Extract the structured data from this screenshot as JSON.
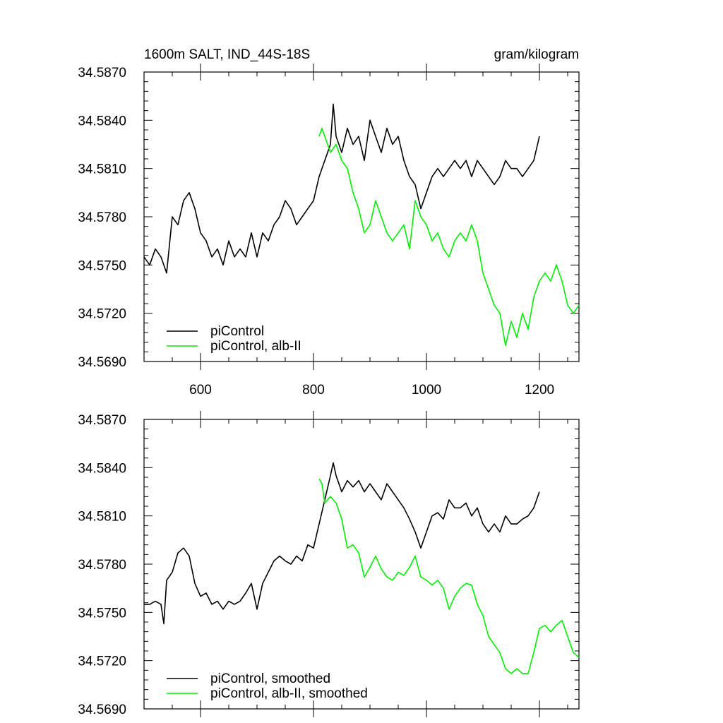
{
  "chart_data": [
    {
      "type": "line",
      "title": "1600m SALT, IND_44S-18S",
      "units": "gram/kilogram",
      "xlabel": "",
      "ylabel": "",
      "xlim": [
        500,
        1270
      ],
      "ylim": [
        34.569,
        34.587
      ],
      "x_ticks": [
        600,
        800,
        1000,
        1200
      ],
      "x_tick_labels": [
        "600",
        "800",
        "1000",
        "1200"
      ],
      "y_ticks": [
        34.569,
        34.572,
        34.575,
        34.578,
        34.581,
        34.584,
        34.587
      ],
      "y_tick_labels": [
        "34.5690",
        "34.5720",
        "34.5750",
        "34.5780",
        "34.5810",
        "34.5840",
        "34.5870"
      ],
      "grid": false,
      "legend": "bottom-left",
      "series": [
        {
          "name": "piControl",
          "color": "#000000",
          "x": [
            500,
            510,
            520,
            530,
            540,
            550,
            560,
            570,
            580,
            590,
            600,
            610,
            620,
            630,
            640,
            650,
            660,
            670,
            680,
            690,
            700,
            710,
            720,
            730,
            740,
            750,
            760,
            770,
            780,
            790,
            800,
            810,
            820,
            830,
            835,
            840,
            850,
            860,
            870,
            880,
            890,
            900,
            910,
            920,
            930,
            940,
            950,
            960,
            970,
            980,
            990,
            995,
            1000,
            1010,
            1020,
            1030,
            1040,
            1050,
            1060,
            1070,
            1080,
            1090,
            1100,
            1110,
            1120,
            1130,
            1140,
            1150,
            1160,
            1170,
            1180,
            1190,
            1200
          ],
          "values": [
            34.5755,
            34.575,
            34.576,
            34.5755,
            34.5745,
            34.578,
            34.5775,
            34.579,
            34.5795,
            34.5785,
            34.577,
            34.5765,
            34.5755,
            34.576,
            34.575,
            34.5765,
            34.5755,
            34.576,
            34.5755,
            34.577,
            34.5755,
            34.577,
            34.5765,
            34.5775,
            34.578,
            34.579,
            34.5785,
            34.5775,
            34.578,
            34.5785,
            34.579,
            34.5805,
            34.5815,
            34.5825,
            34.585,
            34.583,
            34.582,
            34.5835,
            34.5825,
            34.583,
            34.5815,
            34.584,
            34.583,
            34.582,
            34.5835,
            34.5825,
            34.583,
            34.5815,
            34.5805,
            34.58,
            34.5785,
            34.579,
            34.5795,
            34.5805,
            34.581,
            34.5805,
            34.581,
            34.5815,
            34.581,
            34.5815,
            34.5805,
            34.5815,
            34.581,
            34.5805,
            34.58,
            34.5805,
            34.5815,
            34.581,
            34.581,
            34.5805,
            34.581,
            34.5815,
            34.583
          ]
        },
        {
          "name": "piControl, alb-II",
          "color": "#00ee00",
          "x": [
            810,
            815,
            820,
            830,
            840,
            850,
            860,
            870,
            880,
            890,
            900,
            910,
            920,
            930,
            940,
            950,
            960,
            970,
            980,
            990,
            1000,
            1010,
            1020,
            1030,
            1040,
            1050,
            1060,
            1070,
            1080,
            1090,
            1100,
            1110,
            1120,
            1130,
            1140,
            1150,
            1160,
            1170,
            1180,
            1190,
            1200,
            1210,
            1220,
            1230,
            1240,
            1250,
            1260,
            1270
          ],
          "values": [
            34.583,
            34.5835,
            34.583,
            34.582,
            34.5825,
            34.5815,
            34.581,
            34.5795,
            34.5785,
            34.577,
            34.5775,
            34.579,
            34.578,
            34.577,
            34.5765,
            34.577,
            34.5775,
            34.576,
            34.579,
            34.578,
            34.5775,
            34.5765,
            34.577,
            34.576,
            34.5755,
            34.5765,
            34.577,
            34.5765,
            34.5775,
            34.5765,
            34.5745,
            34.5735,
            34.5725,
            34.572,
            34.57,
            34.5715,
            34.5705,
            34.572,
            34.571,
            34.573,
            34.574,
            34.5745,
            34.574,
            34.575,
            34.574,
            34.5725,
            34.572,
            34.5725
          ]
        }
      ]
    },
    {
      "type": "line",
      "title": "",
      "xlabel": "",
      "ylabel": "",
      "xlim": [
        500,
        1270
      ],
      "ylim": [
        34.569,
        34.587
      ],
      "x_ticks": [
        600,
        800,
        1000,
        1200
      ],
      "y_ticks": [
        34.569,
        34.572,
        34.575,
        34.578,
        34.581,
        34.584,
        34.587
      ],
      "y_tick_labels": [
        "34.5690",
        "34.5720",
        "34.5750",
        "34.5780",
        "34.5810",
        "34.5840",
        "34.5870"
      ],
      "grid": false,
      "legend": "bottom-left",
      "series": [
        {
          "name": "piControl, smoothed",
          "color": "#000000",
          "x": [
            500,
            510,
            520,
            530,
            535,
            540,
            550,
            560,
            570,
            580,
            590,
            600,
            610,
            620,
            630,
            640,
            650,
            660,
            670,
            680,
            690,
            700,
            710,
            720,
            730,
            740,
            750,
            760,
            770,
            780,
            790,
            800,
            810,
            820,
            830,
            835,
            840,
            850,
            860,
            870,
            880,
            890,
            900,
            910,
            920,
            930,
            940,
            950,
            960,
            970,
            980,
            990,
            1000,
            1010,
            1020,
            1030,
            1040,
            1050,
            1060,
            1070,
            1080,
            1090,
            1100,
            1110,
            1120,
            1130,
            1140,
            1150,
            1160,
            1170,
            1180,
            1190,
            1200
          ],
          "values": [
            34.5755,
            34.5755,
            34.5757,
            34.5755,
            34.5743,
            34.577,
            34.5775,
            34.5787,
            34.579,
            34.5785,
            34.5768,
            34.576,
            34.5762,
            34.5755,
            34.5757,
            34.5752,
            34.5757,
            34.5755,
            34.5757,
            34.5762,
            34.5768,
            34.5752,
            34.5768,
            34.5775,
            34.5782,
            34.5785,
            34.5782,
            34.578,
            34.5785,
            34.5782,
            34.5792,
            34.579,
            34.5805,
            34.582,
            34.5835,
            34.5843,
            34.5835,
            34.5825,
            34.5832,
            34.5828,
            34.5832,
            34.5825,
            34.583,
            34.5825,
            34.582,
            34.583,
            34.5825,
            34.582,
            34.5815,
            34.5808,
            34.58,
            34.579,
            34.58,
            34.581,
            34.5812,
            34.5808,
            34.582,
            34.5815,
            34.5815,
            34.5818,
            34.581,
            34.5815,
            34.5805,
            34.58,
            34.5805,
            34.58,
            34.581,
            34.5805,
            34.5805,
            34.5808,
            34.581,
            34.5815,
            34.5825
          ]
        },
        {
          "name": "piControl, alb-II, smoothed",
          "color": "#00ee00",
          "x": [
            810,
            815,
            820,
            830,
            840,
            850,
            860,
            870,
            880,
            890,
            900,
            910,
            920,
            930,
            940,
            950,
            960,
            970,
            980,
            990,
            1000,
            1010,
            1020,
            1030,
            1040,
            1050,
            1060,
            1070,
            1080,
            1090,
            1100,
            1110,
            1120,
            1130,
            1140,
            1150,
            1160,
            1170,
            1180,
            1190,
            1200,
            1210,
            1220,
            1230,
            1240,
            1250,
            1260,
            1270
          ],
          "values": [
            34.5833,
            34.583,
            34.5818,
            34.5822,
            34.5818,
            34.5808,
            34.579,
            34.5792,
            34.5787,
            34.5772,
            34.5778,
            34.5785,
            34.5777,
            34.5772,
            34.577,
            34.5775,
            34.5773,
            34.5778,
            34.5785,
            34.5772,
            34.577,
            34.5767,
            34.577,
            34.5765,
            34.5752,
            34.576,
            34.5765,
            34.5768,
            34.5767,
            34.5755,
            34.5748,
            34.5735,
            34.573,
            34.5725,
            34.5715,
            34.5712,
            34.5715,
            34.5712,
            34.5712,
            34.5725,
            34.574,
            34.5742,
            34.5738,
            34.5742,
            34.5745,
            34.5735,
            34.5725,
            34.5722
          ]
        }
      ]
    }
  ]
}
